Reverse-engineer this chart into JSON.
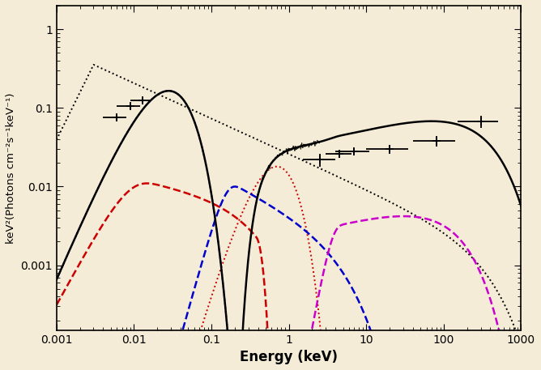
{
  "xlim": [
    0.001,
    1000
  ],
  "ylim": [
    0.00015,
    2.0
  ],
  "xlabel": "Energy (keV)",
  "ylabel": "keV²(Photons cm⁻²s⁻¹keV⁻¹)",
  "bg_color": "#f5ecd7",
  "uv_points": {
    "x": [
      0.006,
      0.009,
      0.013
    ],
    "y": [
      0.075,
      0.105,
      0.125
    ],
    "xerr_lo": [
      0.002,
      0.003,
      0.004
    ],
    "xerr_hi": [
      0.002,
      0.003,
      0.004
    ],
    "yerr": [
      0.006,
      0.008,
      0.01
    ]
  },
  "xray_points": {
    "x": [
      2.5,
      4.5,
      7.0,
      20.0,
      80.0,
      300.0
    ],
    "y": [
      0.022,
      0.026,
      0.028,
      0.03,
      0.038,
      0.068
    ],
    "xerr_lo": [
      1.0,
      1.5,
      3.0,
      10.0,
      40.0,
      150.0
    ],
    "xerr_hi": [
      1.5,
      2.0,
      4.0,
      15.0,
      60.0,
      200.0
    ],
    "yerr": [
      0.004,
      0.003,
      0.003,
      0.004,
      0.006,
      0.012
    ]
  },
  "blue_dot_color": "#0000cc",
  "black_dot_color": "#000000",
  "red_dot_color": "#cc0000",
  "red_dash_color": "#cc0000",
  "blue_dash_color": "#0000cc",
  "mag_dash_color": "#cc00cc",
  "black_solid_color": "#000000",
  "lw_dot": 1.4,
  "lw_dash": 1.8,
  "lw_solid": 1.8
}
